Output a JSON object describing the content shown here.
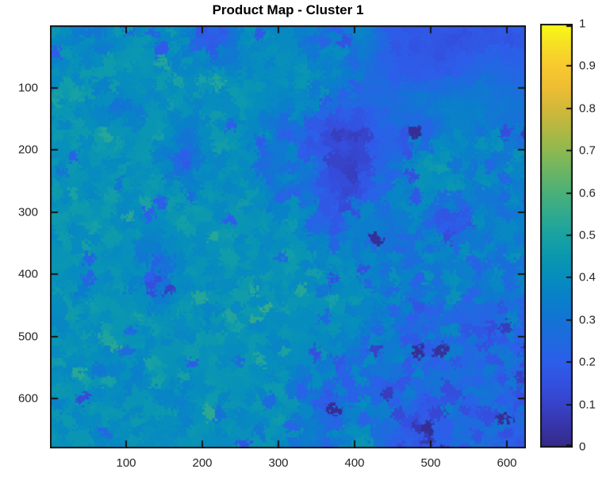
{
  "figure": {
    "background": "#ffffff"
  },
  "chart_data": {
    "type": "heatmap",
    "title": "Product Map - Cluster 1",
    "xlabel": "",
    "ylabel": "",
    "x_ticks": [
      100,
      200,
      300,
      400,
      500,
      600
    ],
    "y_ticks": [
      100,
      200,
      300,
      400,
      500,
      600
    ],
    "xlim": [
      0,
      625
    ],
    "ylim": [
      0,
      680
    ],
    "y_direction": "reverse",
    "grid": false,
    "colors": {
      "axis": "#151515",
      "tick_label": "#262626",
      "background": "#ffffff"
    },
    "colorbar": {
      "position": "right",
      "min": 0,
      "max": 1,
      "tick_values": [
        0,
        0.1,
        0.2,
        0.3,
        0.4,
        0.5,
        0.6,
        0.7,
        0.8,
        0.9,
        1
      ],
      "tick_labels": [
        "0",
        "0.1",
        "0.2",
        "0.3",
        "0.4",
        "0.5",
        "0.6",
        "0.7",
        "0.8",
        "0.9",
        "1"
      ]
    },
    "colormap": {
      "name": "parula",
      "anchors": [
        [
          0.0,
          "#352a87"
        ],
        [
          0.05,
          "#3735a9"
        ],
        [
          0.1,
          "#3743c9"
        ],
        [
          0.15,
          "#3450e0"
        ],
        [
          0.2,
          "#2d5eea"
        ],
        [
          0.25,
          "#2069e0"
        ],
        [
          0.3,
          "#1474d5"
        ],
        [
          0.35,
          "#0a80ca"
        ],
        [
          0.4,
          "#068dbe"
        ],
        [
          0.45,
          "#0b98b0"
        ],
        [
          0.5,
          "#1aa2a2"
        ],
        [
          0.55,
          "#30aa8f"
        ],
        [
          0.6,
          "#4bb07a"
        ],
        [
          0.65,
          "#6bb566"
        ],
        [
          0.7,
          "#8eb851"
        ],
        [
          0.75,
          "#b2b843"
        ],
        [
          0.8,
          "#d3b93a"
        ],
        [
          0.85,
          "#eebe34"
        ],
        [
          0.9,
          "#f9c930"
        ],
        [
          0.95,
          "#f7df25"
        ],
        [
          1.0,
          "#f9fb15"
        ]
      ]
    },
    "values": {
      "note": "approximate cluster-intensity field sampled on a 14x16 grid (row-major, top-to-bottom)",
      "rows": 14,
      "cols": 16,
      "grid": [
        [
          0.42,
          0.3,
          0.42,
          0.4,
          0.38,
          0.18,
          0.4,
          0.36,
          0.34,
          0.3,
          0.36,
          0.18,
          0.17,
          0.16,
          0.17,
          0.18
        ],
        [
          0.4,
          0.42,
          0.44,
          0.42,
          0.4,
          0.42,
          0.38,
          0.42,
          0.4,
          0.38,
          0.3,
          0.2,
          0.17,
          0.18,
          0.28,
          0.22
        ],
        [
          0.42,
          0.4,
          0.3,
          0.42,
          0.4,
          0.42,
          0.44,
          0.4,
          0.34,
          0.25,
          0.24,
          0.28,
          0.34,
          0.34,
          0.34,
          0.28
        ],
        [
          0.42,
          0.44,
          0.4,
          0.42,
          0.36,
          0.42,
          0.4,
          0.3,
          0.22,
          0.12,
          0.12,
          0.26,
          0.16,
          0.38,
          0.34,
          0.3
        ],
        [
          0.42,
          0.42,
          0.42,
          0.4,
          0.24,
          0.4,
          0.42,
          0.26,
          0.3,
          0.1,
          0.1,
          0.3,
          0.42,
          0.42,
          0.3,
          0.34
        ],
        [
          0.42,
          0.42,
          0.42,
          0.44,
          0.42,
          0.42,
          0.42,
          0.34,
          0.28,
          0.12,
          0.16,
          0.34,
          0.4,
          0.38,
          0.34,
          0.3
        ],
        [
          0.42,
          0.42,
          0.42,
          0.42,
          0.44,
          0.42,
          0.42,
          0.4,
          0.34,
          0.2,
          0.35,
          0.35,
          0.36,
          0.06,
          0.35,
          0.34
        ],
        [
          0.42,
          0.42,
          0.4,
          0.3,
          0.42,
          0.44,
          0.42,
          0.42,
          0.4,
          0.38,
          0.35,
          0.3,
          0.3,
          0.35,
          0.3,
          0.34
        ],
        [
          0.42,
          0.4,
          0.42,
          0.26,
          0.4,
          0.42,
          0.44,
          0.42,
          0.42,
          0.4,
          0.38,
          0.34,
          0.3,
          0.38,
          0.3,
          0.3
        ],
        [
          0.42,
          0.44,
          0.42,
          0.42,
          0.42,
          0.4,
          0.42,
          0.44,
          0.42,
          0.4,
          0.38,
          0.3,
          0.25,
          0.3,
          0.25,
          0.28
        ],
        [
          0.42,
          0.42,
          0.44,
          0.42,
          0.42,
          0.44,
          0.42,
          0.4,
          0.42,
          0.38,
          0.34,
          0.3,
          0.25,
          0.28,
          0.22,
          0.25
        ],
        [
          0.42,
          0.4,
          0.36,
          0.42,
          0.42,
          0.42,
          0.4,
          0.42,
          0.34,
          0.3,
          0.3,
          0.25,
          0.3,
          0.22,
          0.28,
          0.22
        ],
        [
          0.4,
          0.42,
          0.42,
          0.4,
          0.38,
          0.42,
          0.42,
          0.4,
          0.28,
          0.26,
          0.3,
          0.22,
          0.18,
          0.25,
          0.2,
          0.25
        ],
        [
          0.42,
          0.4,
          0.42,
          0.42,
          0.4,
          0.42,
          0.38,
          0.4,
          0.3,
          0.3,
          0.42,
          0.22,
          0.15,
          0.2,
          0.22,
          0.18
        ]
      ]
    }
  }
}
